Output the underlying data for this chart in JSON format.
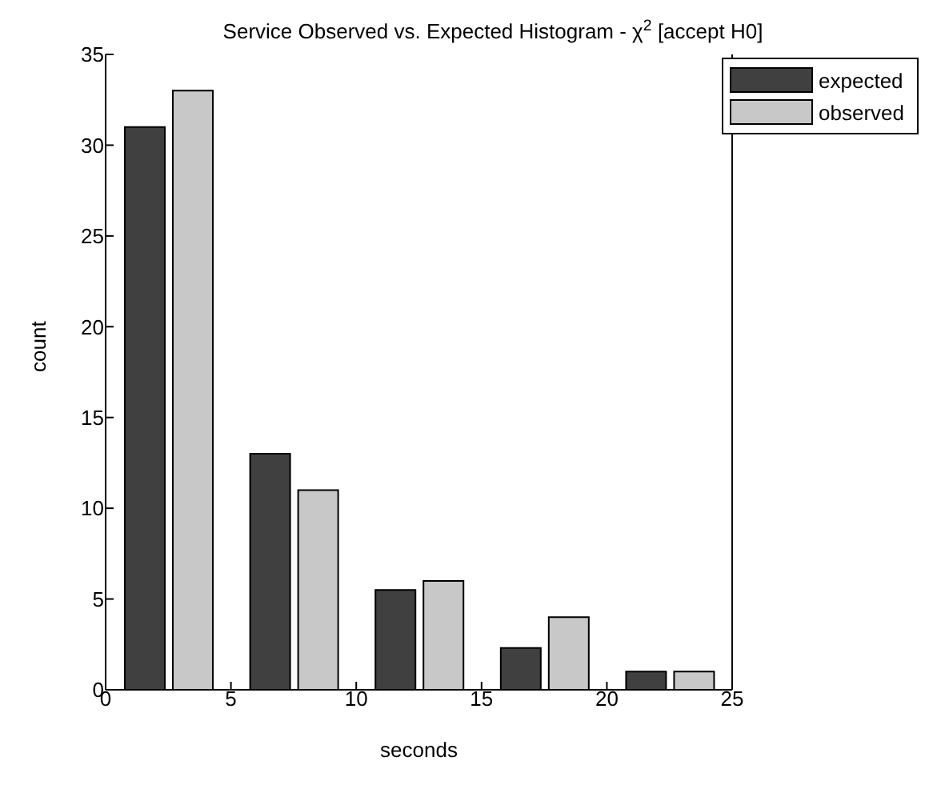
{
  "chart_data": {
    "type": "bar",
    "title": "Service Observed vs. Expected Histogram - χ$^{2}$ [accept H0]",
    "xlabel": "seconds",
    "ylabel": "count",
    "x": [
      2.5,
      7.5,
      12.5,
      17.5,
      22.5
    ],
    "series": [
      {
        "name": "expected",
        "color": "#404040",
        "values": [
          31,
          13,
          5.5,
          2.3,
          1
        ]
      },
      {
        "name": "observed",
        "color": "#c8c8c8",
        "values": [
          33,
          11,
          6,
          4,
          1
        ]
      }
    ],
    "xlim": [
      0,
      25
    ],
    "xticks": [
      0,
      5,
      10,
      15,
      20,
      25
    ],
    "ylim": [
      0,
      35
    ],
    "yticks": [
      0,
      5,
      10,
      15,
      20,
      25,
      30,
      35
    ],
    "legend": "top right"
  }
}
